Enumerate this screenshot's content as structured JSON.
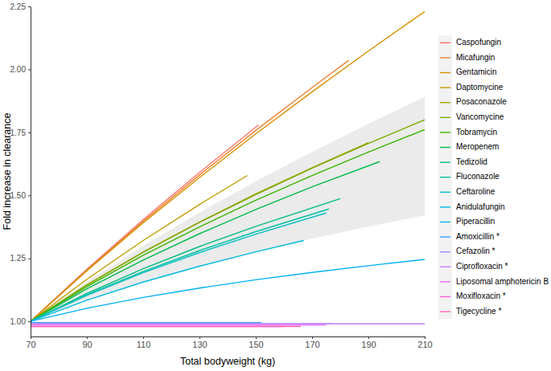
{
  "chart_data": {
    "type": "line",
    "x_label": "Total bodyweight (kg)",
    "y_label": "Fold increase in clearance",
    "xlim": [
      70,
      210
    ],
    "ylim": [
      0.94,
      2.25
    ],
    "xticks": [
      70,
      90,
      110,
      130,
      150,
      170,
      190,
      210
    ],
    "yticks": [
      {
        "value": 1,
        "label": "1.00"
      },
      {
        "value": 1.25,
        "label": "1.25"
      },
      {
        "value": 1.5,
        "label": "1.50"
      },
      {
        "value": 1.75,
        "label": "1.75"
      },
      {
        "value": 2,
        "label": "2.00"
      },
      {
        "value": 2.25,
        "label": "2.25"
      }
    ],
    "grid": false,
    "legend": "right",
    "band": {
      "x": [
        70,
        90,
        110,
        130,
        150,
        170,
        190,
        210
      ],
      "lower": [
        1.0,
        1.084,
        1.156,
        1.219,
        1.276,
        1.328,
        1.377,
        1.421
      ],
      "upper": [
        1.0,
        1.157,
        1.3,
        1.432,
        1.556,
        1.673,
        1.784,
        1.891
      ]
    },
    "series": [
      {
        "name": "Caspofungin",
        "color": "#F8766D",
        "x": [
          70,
          90,
          110,
          130,
          151
        ],
        "values": [
          1.0,
          1.207,
          1.404,
          1.591,
          1.78
        ]
      },
      {
        "name": "Micafungin",
        "color": "#EA8331",
        "x": [
          70,
          90,
          110,
          130,
          150,
          170,
          183
        ],
        "values": [
          1.0,
          1.204,
          1.397,
          1.581,
          1.758,
          1.928,
          2.036
        ]
      },
      {
        "name": "Gentamicin",
        "color": "#D89000",
        "x": [
          70,
          90,
          110,
          130,
          150,
          170,
          190,
          210
        ],
        "values": [
          1.0,
          1.201,
          1.391,
          1.571,
          1.744,
          1.911,
          2.073,
          2.23
        ]
      },
      {
        "name": "Daptomycine",
        "color": "#C09B00",
        "x": [
          70,
          90,
          110,
          130,
          147
        ],
        "values": [
          1.0,
          1.167,
          1.321,
          1.464,
          1.579
        ]
      },
      {
        "name": "Posaconazole",
        "color": "#A3A500",
        "x": [
          70,
          90,
          110,
          130,
          150,
          170,
          190
        ],
        "values": [
          1.0,
          1.145,
          1.275,
          1.394,
          1.506,
          1.61,
          1.709
        ]
      },
      {
        "name": "Vancomycine",
        "color": "#7CAE00",
        "x": [
          70,
          90,
          110,
          130,
          150,
          170,
          190,
          210
        ],
        "values": [
          1.0,
          1.144,
          1.274,
          1.393,
          1.503,
          1.608,
          1.706,
          1.8
        ]
      },
      {
        "name": "Tobramycin",
        "color": "#39B600",
        "x": [
          70,
          90,
          110,
          130,
          150,
          170,
          190,
          210
        ],
        "values": [
          1.0,
          1.138,
          1.262,
          1.375,
          1.481,
          1.579,
          1.672,
          1.761
        ]
      },
      {
        "name": "Meropenem",
        "color": "#00BB4E",
        "x": [
          70,
          90,
          110,
          130,
          150,
          170,
          194
        ],
        "values": [
          1.0,
          1.129,
          1.243,
          1.348,
          1.444,
          1.534,
          1.634
        ]
      },
      {
        "name": "Tedizolid",
        "color": "#00BF7D",
        "x": [
          70,
          90,
          110,
          130,
          150,
          180
        ],
        "values": [
          1.0,
          1.111,
          1.209,
          1.297,
          1.377,
          1.487
        ]
      },
      {
        "name": "Fluconazole",
        "color": "#00C1A3",
        "x": [
          70,
          90,
          110,
          130,
          150,
          176
        ],
        "values": [
          1.0,
          1.106,
          1.198,
          1.281,
          1.356,
          1.446
        ]
      },
      {
        "name": "Ceftaroline",
        "color": "#00BFC4",
        "x": [
          70,
          90,
          110,
          130,
          150,
          175
        ],
        "values": [
          1.0,
          1.103,
          1.193,
          1.273,
          1.346,
          1.43
        ]
      },
      {
        "name": "Anidulafungin",
        "color": "#00BAE0",
        "x": [
          70,
          90,
          110,
          130,
          150,
          167
        ],
        "values": [
          1.0,
          1.084,
          1.156,
          1.219,
          1.276,
          1.321
        ]
      },
      {
        "name": "Piperacillin",
        "color": "#00B0F6",
        "x": [
          70,
          90,
          110,
          130,
          150,
          170,
          190,
          210
        ],
        "values": [
          1.0,
          1.052,
          1.095,
          1.132,
          1.165,
          1.194,
          1.221,
          1.246
        ]
      },
      {
        "name": "Amoxicillin *",
        "color": "#35A2FF",
        "x": [
          70,
          152
        ],
        "values": [
          0.995,
          0.995
        ]
      },
      {
        "name": "Cefazolin *",
        "color": "#9590FF",
        "x": [
          70,
          177
        ],
        "values": [
          0.99,
          0.99
        ]
      },
      {
        "name": "Ciprofloxacin *",
        "color": "#C77CFF",
        "x": [
          70,
          210
        ],
        "values": [
          0.99,
          0.99
        ]
      },
      {
        "name": "Liposomal amphotericin B *",
        "color": "#E76BF3",
        "x": [
          70,
          175
        ],
        "values": [
          0.985,
          0.985
        ]
      },
      {
        "name": "Moxifloxacin *",
        "color": "#FA62DB",
        "x": [
          70,
          160
        ],
        "values": [
          0.98,
          0.98
        ]
      },
      {
        "name": "Tigecycline *",
        "color": "#FF62BC",
        "x": [
          70,
          166
        ],
        "values": [
          0.98,
          0.98
        ]
      }
    ]
  }
}
